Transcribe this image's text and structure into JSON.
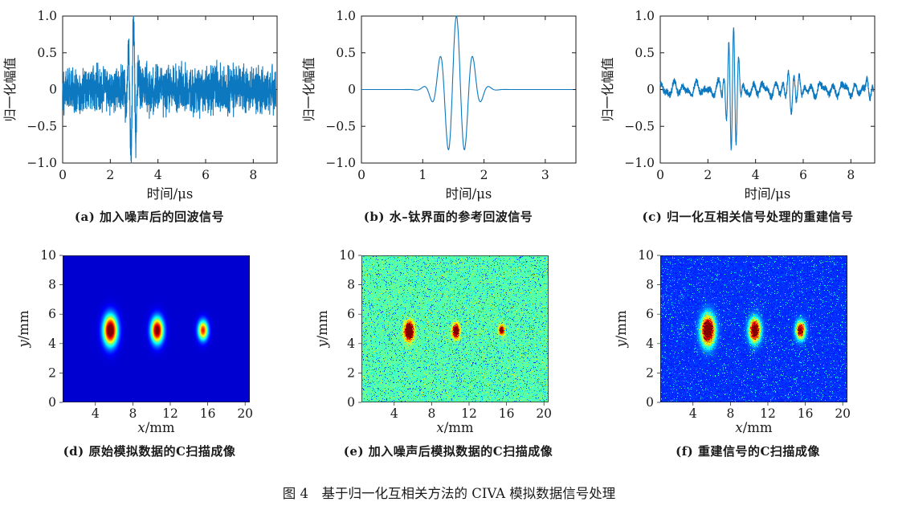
{
  "figure_caption": "图 4　基于归一化互相关方法的 CIVA 模拟数据信号处理",
  "axis_color": "#1a1a1a",
  "line_color": "#0b78c0",
  "chart_data": [
    {
      "id": "a",
      "type": "line",
      "caption": "(a) 加入噪声后的回波信号",
      "xlabel": "时间/μs",
      "ylabel": "归一化幅值",
      "xlim": [
        0,
        9
      ],
      "ylim": [
        -1,
        1
      ],
      "xticks": [
        0,
        2,
        4,
        6,
        8
      ],
      "yticks": [
        "1.0",
        "0.5",
        "0",
        "−0.5",
        "−1.0"
      ],
      "line_color": "#0b78c0",
      "signal": {
        "kind": "noisy_echo",
        "noise_amplitude": 0.3,
        "bursts": [
          {
            "center": 2.92,
            "amplitude": 0.97,
            "sigma": 0.16,
            "frequency": 4.6,
            "carrier": "sin"
          }
        ],
        "peak": 1.0,
        "min": -0.95
      }
    },
    {
      "id": "b",
      "type": "line",
      "caption": "(b) 水–钛界面的参考回波信号",
      "xlabel": "时间/μs",
      "ylabel": "归一化幅值",
      "xlim": [
        0,
        3.5
      ],
      "ylim": [
        -1,
        1
      ],
      "xticks": [
        0,
        1,
        2,
        3
      ],
      "yticks": [
        "1.0",
        "0.5",
        "0",
        "−0.5",
        "−1.0"
      ],
      "line_color": "#0b78c0",
      "signal": {
        "kind": "wavelet",
        "noise_amplitude": 0,
        "bursts": [
          {
            "center": 1.55,
            "amplitude": 1.0,
            "sigma": 0.21,
            "frequency": 3.7,
            "carrier": "cos"
          }
        ],
        "peak": 1.0,
        "min": -0.85
      }
    },
    {
      "id": "c",
      "type": "line",
      "caption": "(c) 归一化互相关信号处理的重建信号",
      "xlabel": "时间/μs",
      "ylabel": "归一化幅值",
      "xlim": [
        0,
        9
      ],
      "ylim": [
        -1,
        1
      ],
      "xticks": [
        0,
        2,
        4,
        6,
        8
      ],
      "yticks": [
        "1.0",
        "0.5",
        "0",
        "−0.5",
        "−1.0"
      ],
      "line_color": "#0b78c0",
      "signal": {
        "kind": "reconstructed",
        "noise_amplitude": 0.04,
        "ripples": [
          {
            "freq": 2.1,
            "amp": 0.055,
            "phase": 0.5
          },
          {
            "freq": 3.3,
            "amp": 0.04,
            "phase": 1.7
          },
          {
            "freq": 1.15,
            "amp": 0.03,
            "phase": 2.6
          }
        ],
        "bursts": [
          {
            "center": 3.03,
            "amplitude": 0.88,
            "sigma": 0.2,
            "frequency": 4.8,
            "carrier": "sin"
          },
          {
            "center": 5.55,
            "amplitude": 0.3,
            "sigma": 0.22,
            "frequency": 4.2,
            "carrier": "sin"
          },
          {
            "center": 8.85,
            "amplitude": 0.15,
            "sigma": 0.18,
            "frequency": 4.0,
            "carrier": "sin"
          }
        ],
        "peak": 0.8,
        "min": -0.87
      }
    },
    {
      "id": "d",
      "type": "heatmap",
      "caption": "(d) 原始模拟数据的C扫描成像",
      "xlabel": "x/mm",
      "ylabel": "y/mm",
      "xlim": [
        0.5,
        20.5
      ],
      "ylim": [
        0,
        10
      ],
      "xticks": [
        4,
        8,
        12,
        16,
        20
      ],
      "yticks": [
        0,
        2,
        4,
        6,
        8,
        10
      ],
      "colormap": "jet",
      "background_value": 0.08,
      "roughness": 0,
      "noise": null,
      "blobs": [
        {
          "x": 5.6,
          "y": 4.9,
          "sx": 0.5,
          "sy": 0.68,
          "peak": 1.08
        },
        {
          "x": 10.6,
          "y": 4.9,
          "sx": 0.44,
          "sy": 0.58,
          "peak": 1.0
        },
        {
          "x": 15.5,
          "y": 4.9,
          "sx": 0.36,
          "sy": 0.45,
          "peak": 0.78
        }
      ]
    },
    {
      "id": "e",
      "type": "heatmap",
      "caption": "(e) 加入噪声后模拟数据的C扫描成像",
      "xlabel": "x/mm",
      "ylabel": "y/mm",
      "xlim": [
        0.5,
        20.5
      ],
      "ylim": [
        0,
        10
      ],
      "xticks": [
        4,
        8,
        12,
        16,
        20
      ],
      "yticks": [
        0,
        2,
        4,
        6,
        8,
        10
      ],
      "colormap": "jet",
      "background_value": 0.46,
      "roughness": 0.55,
      "noise": {
        "jitter": 0.08,
        "dip_prob": 0.1,
        "dip": [
          0.1,
          0.3
        ],
        "bump_prob": 0.02,
        "bump": [
          0.08,
          0.18
        ]
      },
      "blobs": [
        {
          "x": 5.6,
          "y": 4.85,
          "sx": 0.3,
          "sy": 0.4,
          "peak": 1.15
        },
        {
          "x": 10.6,
          "y": 4.85,
          "sx": 0.24,
          "sy": 0.3,
          "peak": 1.0
        },
        {
          "x": 15.5,
          "y": 4.9,
          "sx": 0.2,
          "sy": 0.22,
          "peak": 0.75
        }
      ]
    },
    {
      "id": "f",
      "type": "heatmap",
      "caption": "(f) 重建信号的C扫描成像",
      "xlabel": "x/mm",
      "ylabel": "y/mm",
      "xlim": [
        0.5,
        20.5
      ],
      "ylim": [
        0,
        10
      ],
      "xticks": [
        4,
        8,
        12,
        16,
        20
      ],
      "yticks": [
        0,
        2,
        4,
        6,
        8,
        10
      ],
      "colormap": "jet",
      "background_value": 0.17,
      "roughness": 0.45,
      "noise": {
        "jitter": 0.05,
        "dip_prob": 0,
        "dip": [
          0,
          0
        ],
        "bump_prob": 0.05,
        "bump": [
          0.08,
          0.3
        ]
      },
      "blobs": [
        {
          "x": 5.6,
          "y": 4.9,
          "sx": 0.48,
          "sy": 0.66,
          "peak": 1.2
        },
        {
          "x": 10.6,
          "y": 4.9,
          "sx": 0.4,
          "sy": 0.52,
          "peak": 1.1
        },
        {
          "x": 15.5,
          "y": 4.9,
          "sx": 0.33,
          "sy": 0.4,
          "peak": 0.95
        }
      ]
    }
  ]
}
